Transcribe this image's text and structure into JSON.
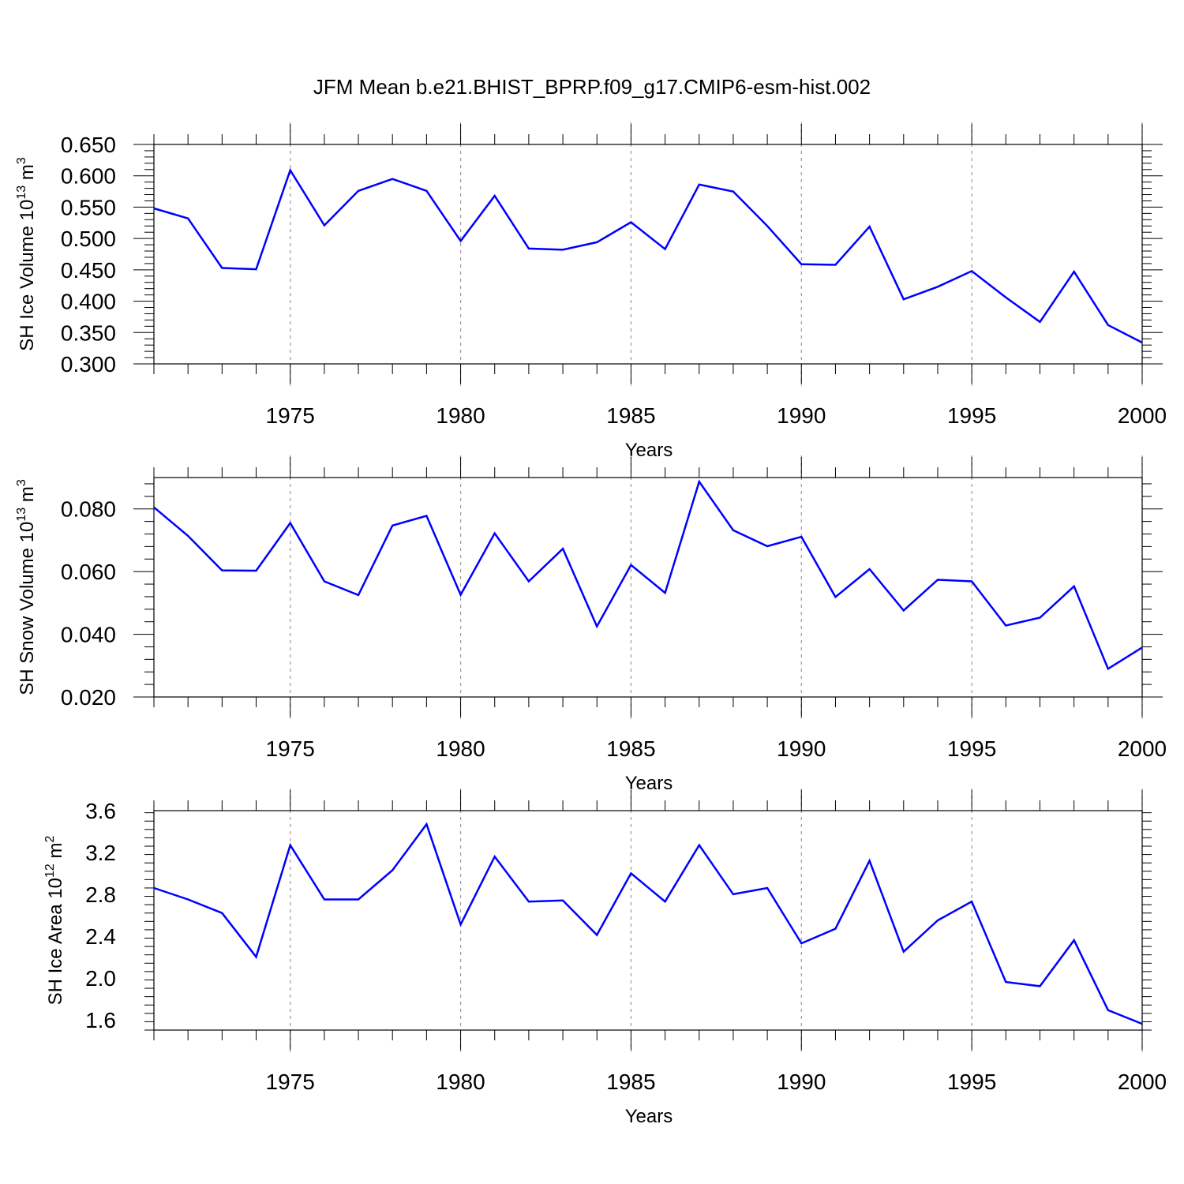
{
  "title": "JFM Mean b.e21.BHIST_BPRP.f09_g17.CMIP6-esm-hist.002",
  "colors": {
    "series": "#0000ff",
    "grid": "#999999",
    "axis": "#000000"
  },
  "chart_data": [
    {
      "type": "line",
      "xlabel": "Years",
      "ylabel": {
        "text": "SH Ice Volume 10",
        "sup": "13",
        "unit": " m",
        "unit_sup": "3"
      },
      "xlim": [
        1971,
        2000
      ],
      "ylim": [
        0.3,
        0.65
      ],
      "xticks": [
        1975,
        1980,
        1985,
        1990,
        1995,
        2000
      ],
      "xtick_labels": [
        "1975",
        "1980",
        "1985",
        "1990",
        "1995",
        "2000"
      ],
      "yticks": [
        0.3,
        0.35,
        0.4,
        0.45,
        0.5,
        0.55,
        0.6,
        0.65
      ],
      "ytick_labels": [
        "0.300",
        "0.350",
        "0.400",
        "0.450",
        "0.500",
        "0.550",
        "0.600",
        "0.650"
      ],
      "grid": "vertical dashed at major x ticks",
      "x": [
        1971,
        1972,
        1973,
        1974,
        1975,
        1976,
        1977,
        1978,
        1979,
        1980,
        1981,
        1982,
        1983,
        1984,
        1985,
        1986,
        1987,
        1988,
        1989,
        1990,
        1991,
        1992,
        1993,
        1994,
        1995,
        1996,
        1997,
        1998,
        1999,
        2000
      ],
      "values": [
        0.548,
        0.532,
        0.453,
        0.451,
        0.609,
        0.521,
        0.576,
        0.595,
        0.576,
        0.496,
        0.568,
        0.484,
        0.482,
        0.494,
        0.526,
        0.483,
        0.586,
        0.575,
        0.52,
        0.459,
        0.458,
        0.519,
        0.403,
        0.423,
        0.448,
        0.406,
        0.367,
        0.447,
        0.362,
        0.334
      ]
    },
    {
      "type": "line",
      "xlabel": "Years",
      "ylabel": {
        "text": "SH Snow Volume 10",
        "sup": "13",
        "unit": " m",
        "unit_sup": "3"
      },
      "xlim": [
        1971,
        2000
      ],
      "ylim": [
        0.02,
        0.09
      ],
      "xticks": [
        1975,
        1980,
        1985,
        1990,
        1995,
        2000
      ],
      "xtick_labels": [
        "1975",
        "1980",
        "1985",
        "1990",
        "1995",
        "2000"
      ],
      "yticks": [
        0.02,
        0.04,
        0.06,
        0.08
      ],
      "ytick_labels": [
        "0.020",
        "0.040",
        "0.060",
        "0.080"
      ],
      "grid": "vertical dashed at major x ticks",
      "x": [
        1971,
        1972,
        1973,
        1974,
        1975,
        1976,
        1977,
        1978,
        1979,
        1980,
        1981,
        1982,
        1983,
        1984,
        1985,
        1986,
        1987,
        1988,
        1989,
        1990,
        1991,
        1992,
        1993,
        1994,
        1995,
        1996,
        1997,
        1998,
        1999,
        2000
      ],
      "values": [
        0.0805,
        0.0714,
        0.0604,
        0.0603,
        0.0755,
        0.0569,
        0.0525,
        0.0747,
        0.0778,
        0.0526,
        0.0722,
        0.0569,
        0.0673,
        0.0425,
        0.0621,
        0.0532,
        0.0887,
        0.0732,
        0.0681,
        0.0711,
        0.0519,
        0.0608,
        0.0476,
        0.0574,
        0.0569,
        0.0428,
        0.0453,
        0.0553,
        0.029,
        0.0358
      ]
    },
    {
      "type": "line",
      "xlabel": "Years",
      "ylabel": {
        "text": "SH Ice Area 10",
        "sup": "12",
        "unit": " m",
        "unit_sup": "2"
      },
      "xlim": [
        1971,
        2000
      ],
      "ylim": [
        1.5,
        3.6
      ],
      "xticks": [
        1975,
        1980,
        1985,
        1990,
        1995,
        2000
      ],
      "xtick_labels": [
        "1975",
        "1980",
        "1985",
        "1990",
        "1995",
        "2000"
      ],
      "yticks": [
        1.6,
        2.0,
        2.4,
        2.8,
        3.2,
        3.6
      ],
      "ytick_labels": [
        "1.6",
        "2.0",
        "2.4",
        "2.8",
        "3.2",
        "3.6"
      ],
      "grid": "vertical dashed at major x ticks",
      "x": [
        1971,
        1972,
        1973,
        1974,
        1975,
        1976,
        1977,
        1978,
        1979,
        1980,
        1981,
        1982,
        1983,
        1984,
        1985,
        1986,
        1987,
        1988,
        1989,
        1990,
        1991,
        1992,
        1993,
        1994,
        1995,
        1996,
        1997,
        1998,
        1999,
        2000
      ],
      "values": [
        2.86,
        2.75,
        2.62,
        2.2,
        3.27,
        2.75,
        2.75,
        3.03,
        3.47,
        2.51,
        3.16,
        2.73,
        2.74,
        2.41,
        3.0,
        2.73,
        3.27,
        2.8,
        2.86,
        2.33,
        2.47,
        3.12,
        2.25,
        2.55,
        2.73,
        1.96,
        1.92,
        2.36,
        1.69,
        1.56
      ]
    }
  ]
}
